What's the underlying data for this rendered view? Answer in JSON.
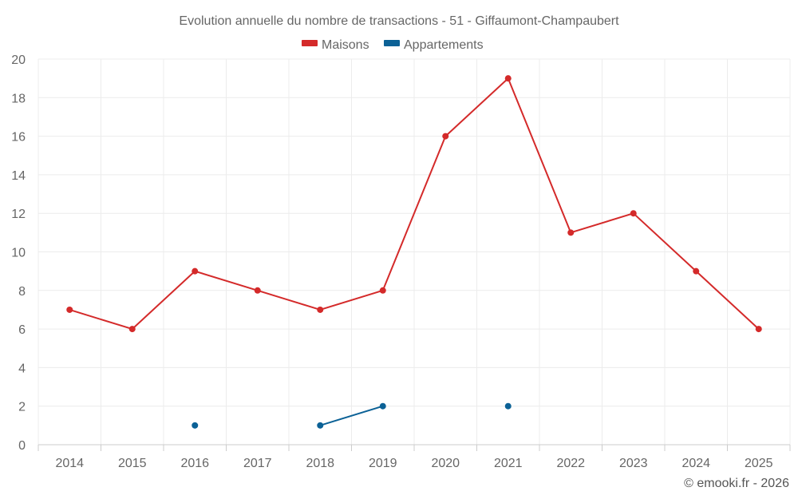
{
  "chart_data": {
    "type": "line",
    "title": "Evolution annuelle du nombre de transactions - 51 - Giffaumont-Champaubert",
    "categories": [
      "2014",
      "2015",
      "2016",
      "2017",
      "2018",
      "2019",
      "2020",
      "2021",
      "2022",
      "2023",
      "2024",
      "2025"
    ],
    "series": [
      {
        "name": "Maisons",
        "color": "#d42a2a",
        "values": [
          7,
          6,
          9,
          8,
          7,
          8,
          16,
          19,
          11,
          12,
          9,
          6
        ]
      },
      {
        "name": "Appartements",
        "color": "#0b6196",
        "values": [
          null,
          null,
          1,
          null,
          1,
          2,
          null,
          2,
          null,
          null,
          null,
          null
        ]
      }
    ],
    "ylim": [
      0,
      20
    ],
    "yticks": [
      0,
      2,
      4,
      6,
      8,
      10,
      12,
      14,
      16,
      18,
      20
    ],
    "xlabel": "",
    "ylabel": "",
    "grid": true,
    "legend": "top-center"
  },
  "credit": "© emooki.fr - 2026"
}
